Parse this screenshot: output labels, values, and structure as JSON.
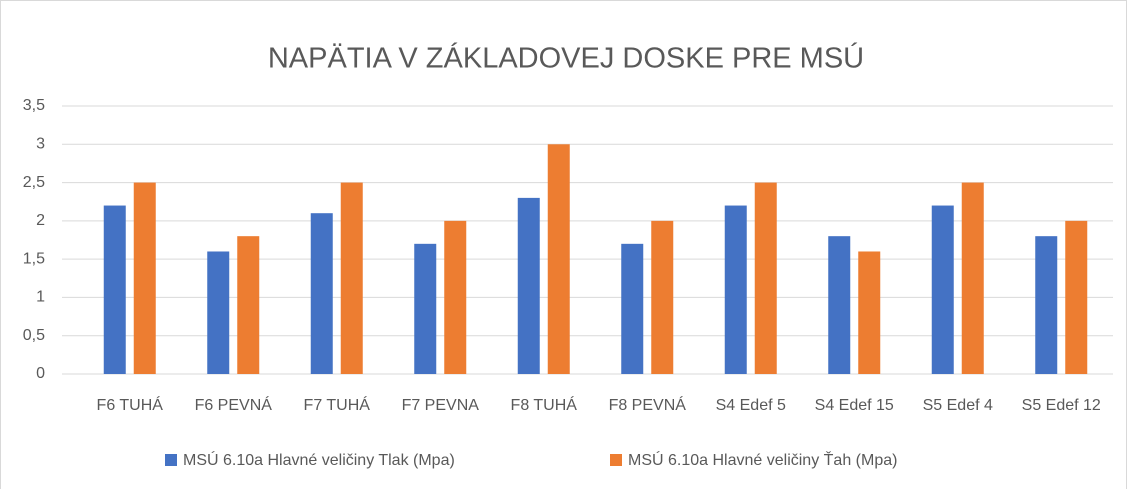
{
  "chart_data": {
    "type": "bar",
    "title": "NAPÄTIA V ZÁKLADOVEJ DOSKE PRE MSÚ",
    "categories": [
      "F6 TUHÁ",
      "F6 PEVNÁ",
      "F7 TUHÁ",
      "F7 PEVNA",
      "F8 TUHÁ",
      "F8 PEVNÁ",
      "S4 Edef 5",
      "S4 Edef 15",
      "S5 Edef 4",
      "S5 Edef 12"
    ],
    "series": [
      {
        "name": "MSÚ 6.10a Hlavné veličiny Tlak (Mpa)",
        "color": "#4472c4",
        "values": [
          2.2,
          1.6,
          2.1,
          1.7,
          2.3,
          1.7,
          2.2,
          1.8,
          2.2,
          1.8
        ]
      },
      {
        "name": "MSÚ 6.10a Hlavné veličiny Ťah (Mpa)",
        "color": "#ed7d31",
        "values": [
          2.5,
          1.8,
          2.5,
          2.0,
          3.0,
          2.0,
          2.5,
          1.6,
          2.5,
          2.0
        ]
      }
    ],
    "ylim": [
      0,
      3.5
    ],
    "yticks": [
      0,
      {
        "value": 0.5,
        "label": "0,5"
      },
      1,
      {
        "value": 1.5,
        "label": "1,5"
      },
      2,
      {
        "value": 2.5,
        "label": "2,5"
      },
      3,
      {
        "value": 3.5,
        "label": "3,5"
      }
    ],
    "grid": true,
    "legend": "bottom"
  }
}
